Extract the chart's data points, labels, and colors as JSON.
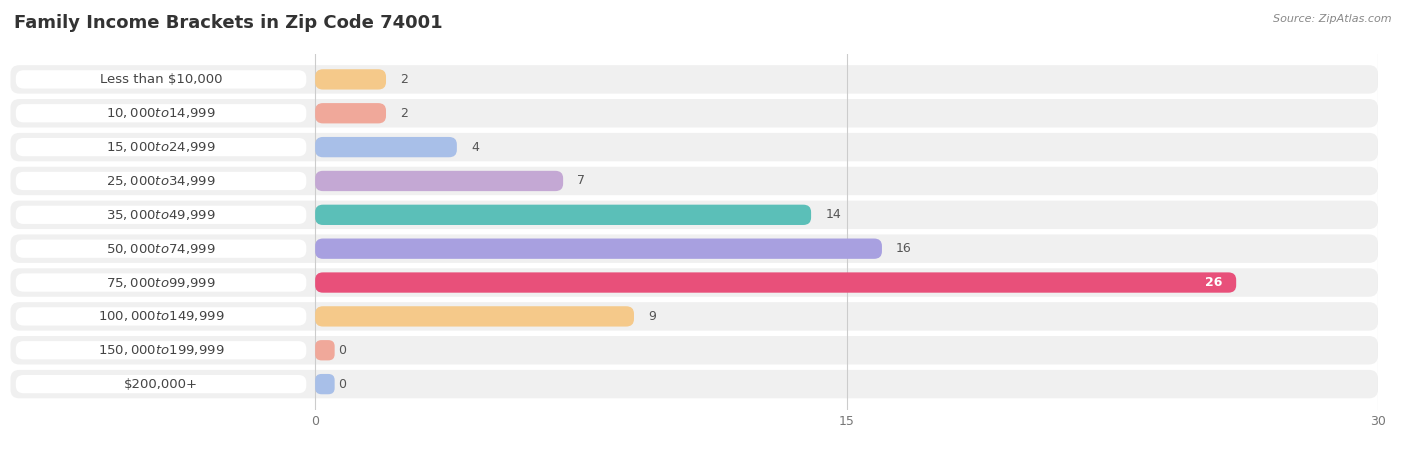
{
  "title": "Family Income Brackets in Zip Code 74001",
  "source": "Source: ZipAtlas.com",
  "categories": [
    "Less than $10,000",
    "$10,000 to $14,999",
    "$15,000 to $24,999",
    "$25,000 to $34,999",
    "$35,000 to $49,999",
    "$50,000 to $74,999",
    "$75,000 to $99,999",
    "$100,000 to $149,999",
    "$150,000 to $199,999",
    "$200,000+"
  ],
  "values": [
    2,
    2,
    4,
    7,
    14,
    16,
    26,
    9,
    0,
    0
  ],
  "bar_colors": [
    "#f5c98a",
    "#f0a89a",
    "#a8bfe8",
    "#c4a8d4",
    "#5bbfb8",
    "#a8a0e0",
    "#e8507a",
    "#f5c98a",
    "#f0a89a",
    "#a8bfe8"
  ],
  "xlim": [
    0,
    30
  ],
  "xticks": [
    0,
    15,
    30
  ],
  "title_fontsize": 13,
  "label_fontsize": 9.5,
  "value_fontsize": 9
}
